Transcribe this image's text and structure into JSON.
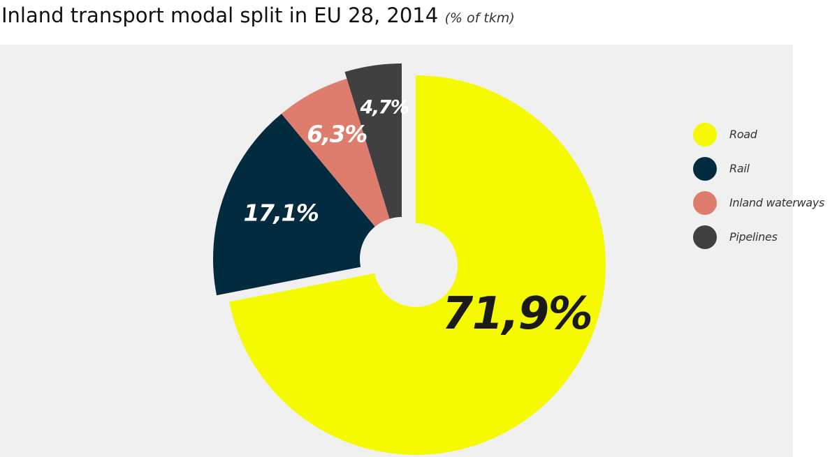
{
  "title": "Inland transport modal split in EU 28, 2014",
  "unit": "(% of tkm)",
  "chart_data": {
    "type": "pie",
    "title": "Inland transport modal split in EU 28, 2014",
    "subtitle": "(% of tkm)",
    "legend_position": "right",
    "slices": [
      {
        "name": "Road",
        "value": 71.9,
        "label": "71,9%",
        "color": "#f5fa00",
        "label_color": "#1a1a1a"
      },
      {
        "name": "Rail",
        "value": 17.1,
        "label": "17,1%",
        "color": "#022b40",
        "label_color": "#ffffff"
      },
      {
        "name": "Inland waterways",
        "value": 6.3,
        "label": "6,3%",
        "color": "#de7d6d",
        "label_color": "#ffffff"
      },
      {
        "name": "Pipelines",
        "value": 4.7,
        "label": "4,7%",
        "color": "#404040",
        "label_color": "#ffffff"
      }
    ]
  }
}
